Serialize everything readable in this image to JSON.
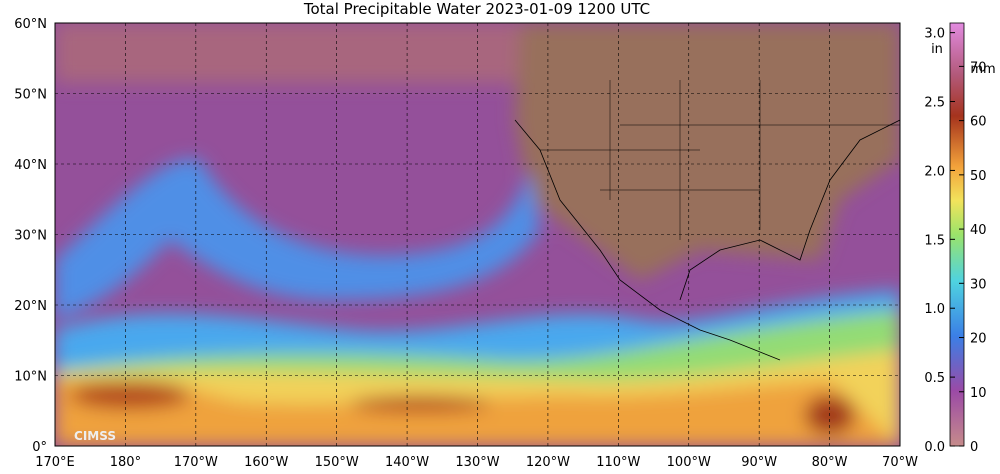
{
  "title": "Total Precipitable Water  2023-01-09 1200 UTC",
  "lat_labels": [
    "60°N",
    "50°N",
    "40°N",
    "30°N",
    "20°N",
    "10°N",
    "0°"
  ],
  "lon_labels": [
    "170°E",
    "180°",
    "170°W",
    "160°W",
    "150°W",
    "140°W",
    "130°W",
    "120°W",
    "110°W",
    "100°W",
    "90°W",
    "80°W",
    "70°W"
  ],
  "logo": "CIMSS",
  "colorbar": {
    "in_unit": "in",
    "mm_unit": "mm",
    "range_in": [
      0,
      3.07
    ],
    "range_mm": [
      0,
      78
    ],
    "in_ticks": [
      {
        "value": 0,
        "label": "0.0"
      },
      {
        "value": 0.5,
        "label": "0.5"
      },
      {
        "value": 1,
        "label": "1.0"
      },
      {
        "value": 1.5,
        "label": "1.5"
      },
      {
        "value": 2,
        "label": "2.0"
      },
      {
        "value": 2.5,
        "label": "2.5"
      },
      {
        "value": 3,
        "label": "3.0"
      }
    ],
    "mm_ticks": [
      0,
      10,
      20,
      30,
      40,
      50,
      60,
      70
    ]
  }
}
